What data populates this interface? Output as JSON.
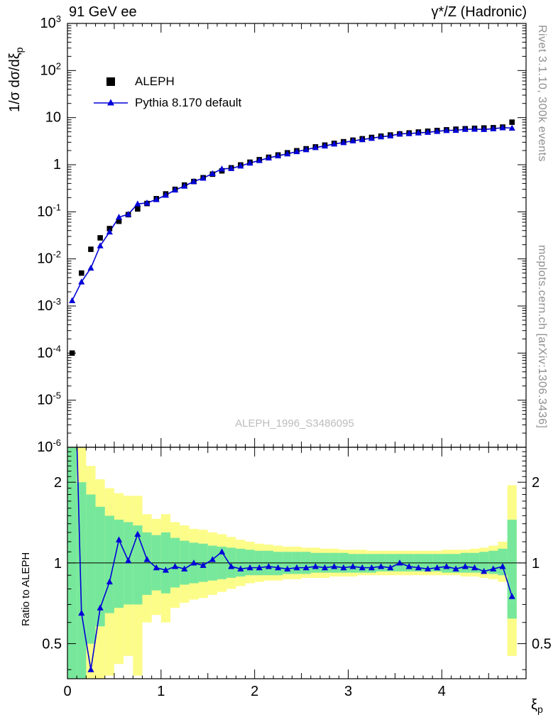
{
  "chart_data": {
    "type": "line",
    "title_left": "91 GeV ee",
    "title_right": "γ*/Z (Hadronic)",
    "ylabel_base": "1/σ dσ/dξ",
    "ylabel_sub": "p",
    "ratio_ylabel": "Ratio to ALEPH",
    "xlabel_base": "ξ",
    "xlabel_sub": "p",
    "watermark": "ALEPH_1996_S3486095",
    "right_note_top": "Rivet 3.1.10,  300k events",
    "right_note_bottom": "mcplots.cern.ch [arXiv:1306.3436]",
    "legend": [
      {
        "label": "ALEPH",
        "marker": "black-square"
      },
      {
        "label": "Pythia 8.170 default",
        "marker": "blue-triangle-line"
      }
    ],
    "xlim": [
      0,
      4.9
    ],
    "main_ylim": [
      1e-06,
      1000.0
    ],
    "ratio_ylim": [
      0.37,
      2.7
    ],
    "x_ticks": [
      0,
      1,
      2,
      3,
      4
    ],
    "main_y_tick_exponents": [
      -6,
      -5,
      -4,
      -3,
      -2,
      -1,
      0,
      1,
      2,
      3
    ],
    "ratio_y_ticks": [
      0.5,
      1,
      2
    ],
    "colors": {
      "pythia_blue": "#0000d8",
      "data_black": "#000000",
      "band_yellow": "#fcfc89",
      "band_green": "#77e89b",
      "watermark_gray": "#bcbcbc",
      "note_gray": "#909090"
    },
    "x": [
      0.05,
      0.15,
      0.25,
      0.35,
      0.45,
      0.55,
      0.65,
      0.75,
      0.85,
      0.95,
      1.05,
      1.15,
      1.25,
      1.35,
      1.45,
      1.55,
      1.65,
      1.75,
      1.85,
      1.95,
      2.05,
      2.15,
      2.25,
      2.35,
      2.45,
      2.55,
      2.65,
      2.75,
      2.85,
      2.95,
      3.05,
      3.15,
      3.25,
      3.35,
      3.45,
      3.55,
      3.65,
      3.75,
      3.85,
      3.95,
      4.05,
      4.15,
      4.25,
      4.35,
      4.45,
      4.55,
      4.65,
      4.75
    ],
    "series": [
      {
        "name": "ALEPH",
        "values": [
          0.0001,
          0.005,
          0.016,
          0.028,
          0.044,
          0.063,
          0.087,
          0.115,
          0.15,
          0.19,
          0.24,
          0.3,
          0.37,
          0.44,
          0.53,
          0.63,
          0.74,
          0.86,
          0.99,
          1.13,
          1.28,
          1.44,
          1.61,
          1.79,
          1.98,
          2.18,
          2.39,
          2.61,
          2.84,
          3.08,
          3.32,
          3.56,
          3.8,
          4.04,
          4.28,
          4.51,
          4.73,
          4.94,
          5.14,
          5.33,
          5.51,
          5.67,
          5.81,
          5.93,
          6.03,
          6.11,
          6.3,
          8.0
        ]
      },
      {
        "name": "Pythia 8.170 default",
        "ratio_to_aleph": [
          13.0,
          0.65,
          0.4,
          0.68,
          0.85,
          1.22,
          1.02,
          1.28,
          1.03,
          0.96,
          0.94,
          0.97,
          0.95,
          1.0,
          0.98,
          1.03,
          1.1,
          0.97,
          0.95,
          0.96,
          0.96,
          0.97,
          0.96,
          0.95,
          0.96,
          0.96,
          0.97,
          0.96,
          0.97,
          0.96,
          0.97,
          0.96,
          0.96,
          0.97,
          0.96,
          1.0,
          0.97,
          0.96,
          0.95,
          0.96,
          0.97,
          0.95,
          0.97,
          0.96,
          0.93,
          0.95,
          0.97,
          0.75
        ]
      }
    ],
    "bands": {
      "yellow_lo": [
        0.3,
        0.3,
        0.3,
        0.3,
        0.38,
        0.42,
        0.45,
        0.38,
        0.6,
        0.64,
        0.6,
        0.68,
        0.71,
        0.73,
        0.74,
        0.76,
        0.78,
        0.8,
        0.82,
        0.84,
        0.85,
        0.86,
        0.86,
        0.87,
        0.87,
        0.88,
        0.88,
        0.88,
        0.89,
        0.89,
        0.89,
        0.9,
        0.9,
        0.9,
        0.9,
        0.9,
        0.9,
        0.9,
        0.9,
        0.9,
        0.9,
        0.9,
        0.89,
        0.89,
        0.88,
        0.87,
        0.85,
        0.45
      ],
      "yellow_hi": [
        2.8,
        2.8,
        2.3,
        2.05,
        1.9,
        1.82,
        1.78,
        1.78,
        1.52,
        1.46,
        1.52,
        1.42,
        1.38,
        1.34,
        1.33,
        1.3,
        1.28,
        1.25,
        1.22,
        1.2,
        1.18,
        1.17,
        1.16,
        1.15,
        1.15,
        1.14,
        1.14,
        1.13,
        1.13,
        1.12,
        1.12,
        1.12,
        1.11,
        1.11,
        1.11,
        1.11,
        1.11,
        1.11,
        1.11,
        1.11,
        1.12,
        1.12,
        1.12,
        1.13,
        1.14,
        1.16,
        1.2,
        1.95
      ],
      "green_lo": [
        0.3,
        0.3,
        0.5,
        0.58,
        0.65,
        0.68,
        0.7,
        0.7,
        0.76,
        0.79,
        0.77,
        0.81,
        0.83,
        0.84,
        0.85,
        0.86,
        0.87,
        0.88,
        0.89,
        0.9,
        0.9,
        0.9,
        0.9,
        0.91,
        0.91,
        0.91,
        0.92,
        0.92,
        0.92,
        0.92,
        0.92,
        0.92,
        0.92,
        0.93,
        0.93,
        0.93,
        0.93,
        0.93,
        0.93,
        0.93,
        0.92,
        0.92,
        0.92,
        0.92,
        0.92,
        0.91,
        0.9,
        0.62
      ],
      "green_hi": [
        2.8,
        2.0,
        1.8,
        1.62,
        1.5,
        1.45,
        1.42,
        1.38,
        1.3,
        1.27,
        1.3,
        1.24,
        1.21,
        1.19,
        1.18,
        1.16,
        1.15,
        1.14,
        1.13,
        1.12,
        1.11,
        1.11,
        1.1,
        1.1,
        1.1,
        1.1,
        1.09,
        1.09,
        1.09,
        1.09,
        1.08,
        1.08,
        1.08,
        1.08,
        1.08,
        1.08,
        1.08,
        1.08,
        1.08,
        1.08,
        1.08,
        1.08,
        1.09,
        1.09,
        1.1,
        1.11,
        1.13,
        1.45
      ]
    }
  }
}
